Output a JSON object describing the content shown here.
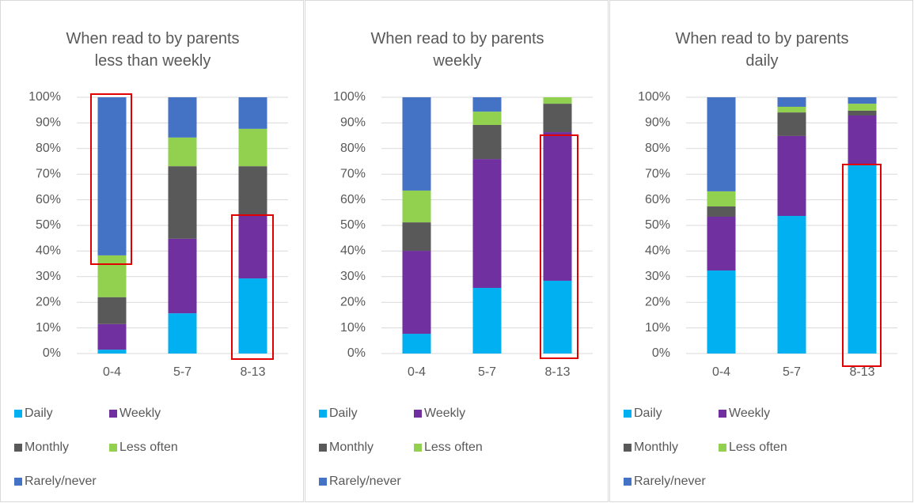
{
  "chart_data": [
    {
      "type": "bar",
      "stacked": true,
      "title": "When read to by parents less than weekly",
      "categories": [
        "0-4",
        "5-7",
        "8-13"
      ],
      "ylim": [
        0,
        100
      ],
      "yticks": [
        {
          "value": 0,
          "label": "0%"
        },
        {
          "value": 10,
          "label": "10%"
        },
        {
          "value": 20,
          "label": "20%"
        },
        {
          "value": 30,
          "label": "30%"
        },
        {
          "value": 40,
          "label": "40%"
        },
        {
          "value": 50,
          "label": "50%"
        },
        {
          "value": 60,
          "label": "60%"
        },
        {
          "value": 70,
          "label": "70%"
        },
        {
          "value": 80,
          "label": "80%"
        },
        {
          "value": 90,
          "label": "90%"
        },
        {
          "value": 100,
          "label": "100%"
        }
      ],
      "grid": true,
      "legend": "bottom",
      "series": [
        {
          "name": "Daily",
          "color": "#00b0f0",
          "values": [
            1.5,
            15.7,
            29.3
          ]
        },
        {
          "name": "Weekly",
          "color": "#7030a0",
          "values": [
            10,
            29.1,
            24.7
          ]
        },
        {
          "name": "Monthly",
          "color": "#595959",
          "values": [
            10.5,
            28.3,
            19.1
          ]
        },
        {
          "name": "Less often",
          "color": "#92d050",
          "values": [
            16.3,
            11.2,
            14.6
          ]
        },
        {
          "name": "Rarely/never",
          "color": "#4472c4",
          "values": [
            61.7,
            15.7,
            12.3
          ]
        }
      ]
    },
    {
      "type": "bar",
      "stacked": true,
      "title": "When read to by parents weekly",
      "categories": [
        "0-4",
        "5-7",
        "8-13"
      ],
      "ylim": [
        0,
        100
      ],
      "yticks": [
        {
          "value": 0,
          "label": "0%"
        },
        {
          "value": 10,
          "label": "10%"
        },
        {
          "value": 20,
          "label": "20%"
        },
        {
          "value": 30,
          "label": "30%"
        },
        {
          "value": 40,
          "label": "40%"
        },
        {
          "value": 50,
          "label": "50%"
        },
        {
          "value": 60,
          "label": "60%"
        },
        {
          "value": 70,
          "label": "70%"
        },
        {
          "value": 80,
          "label": "80%"
        },
        {
          "value": 90,
          "label": "90%"
        },
        {
          "value": 100,
          "label": "100%"
        }
      ],
      "grid": true,
      "legend": "bottom",
      "series": [
        {
          "name": "Daily",
          "color": "#00b0f0",
          "values": [
            7.7,
            25.6,
            28.4
          ]
        },
        {
          "name": "Weekly",
          "color": "#7030a0",
          "values": [
            32.4,
            50.3,
            58
          ]
        },
        {
          "name": "Monthly",
          "color": "#595959",
          "values": [
            11.1,
            13.3,
            11.1
          ]
        },
        {
          "name": "Less often",
          "color": "#92d050",
          "values": [
            12.4,
            5.2,
            2.5
          ]
        },
        {
          "name": "Rarely/never",
          "color": "#4472c4",
          "values": [
            36.4,
            5.6,
            0
          ]
        }
      ]
    },
    {
      "type": "bar",
      "stacked": true,
      "title": "When read to by parents daily",
      "categories": [
        "0-4",
        "5-7",
        "8-13"
      ],
      "ylim": [
        0,
        100
      ],
      "yticks": [
        {
          "value": 0,
          "label": "0%"
        },
        {
          "value": 10,
          "label": "10%"
        },
        {
          "value": 20,
          "label": "20%"
        },
        {
          "value": 30,
          "label": "30%"
        },
        {
          "value": 40,
          "label": "40%"
        },
        {
          "value": 50,
          "label": "50%"
        },
        {
          "value": 60,
          "label": "60%"
        },
        {
          "value": 70,
          "label": "70%"
        },
        {
          "value": 80,
          "label": "80%"
        },
        {
          "value": 90,
          "label": "90%"
        },
        {
          "value": 100,
          "label": "100%"
        }
      ],
      "grid": true,
      "legend": "bottom",
      "series": [
        {
          "name": "Daily",
          "color": "#00b0f0",
          "values": [
            32.4,
            53.7,
            73.5
          ]
        },
        {
          "name": "Weekly",
          "color": "#7030a0",
          "values": [
            21,
            31.2,
            19.4
          ]
        },
        {
          "name": "Monthly",
          "color": "#595959",
          "values": [
            4,
            9.2,
            1.9
          ]
        },
        {
          "name": "Less often",
          "color": "#92d050",
          "values": [
            5.9,
            2.2,
            2.7
          ]
        },
        {
          "name": "Rarely/never",
          "color": "#4472c4",
          "values": [
            36.7,
            3.7,
            2.5
          ]
        }
      ]
    }
  ]
}
